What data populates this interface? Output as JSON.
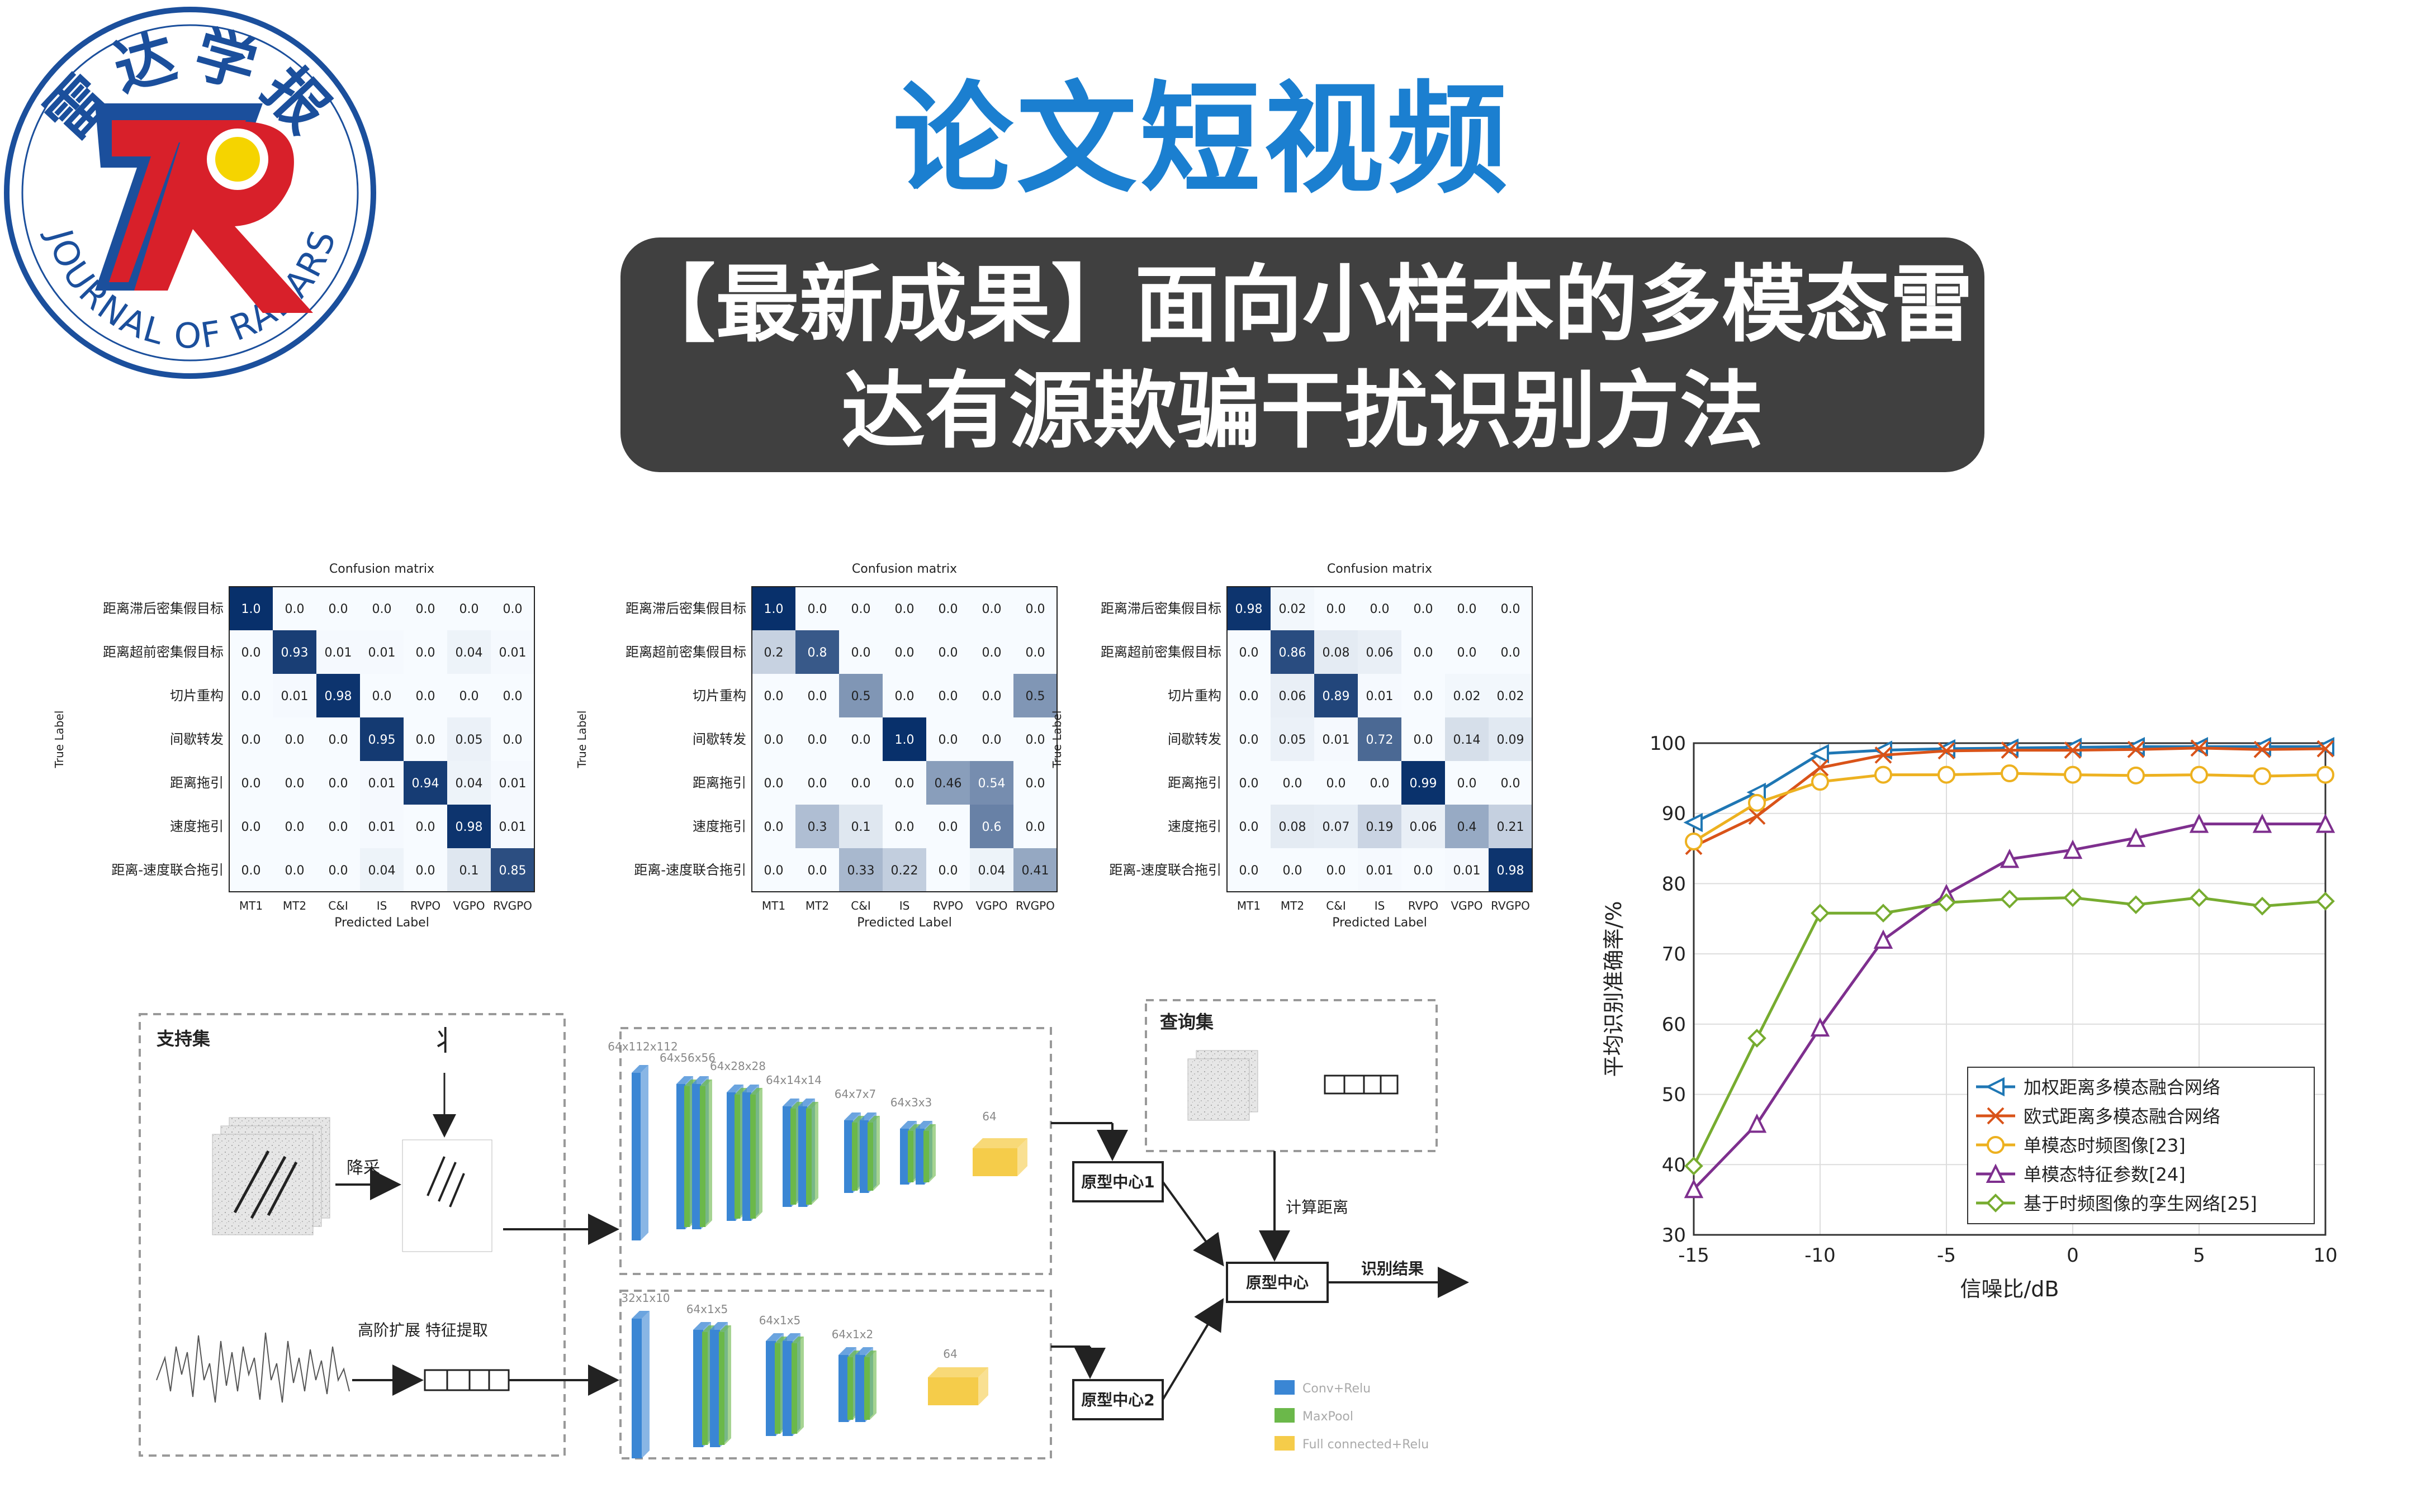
{
  "logo": {
    "journal_cn": "雷达学报",
    "journal_en": "JOURNAL OF RADARS",
    "colors": {
      "ring": "#1b4f9c",
      "red": "#d8202a",
      "yellow": "#f5d400"
    }
  },
  "header": {
    "title": "论文短视频",
    "subtitle_line1": "【最新成果】面向小样本的多模态雷",
    "subtitle_line2": "达有源欺骗干扰识别方法"
  },
  "confusion_matrices": [
    {
      "title": "Confusion matrix",
      "xlabel": "Predicted Label",
      "ylabel": "True Label",
      "row_labels": [
        "距离滞后密集假目标",
        "距离超前密集假目标",
        "切片重构",
        "间歇转发",
        "距离拖引",
        "速度拖引",
        "距离-速度联合拖引"
      ],
      "col_labels": [
        "MT1",
        "MT2",
        "C&I",
        "IS",
        "RVPO",
        "VGPO",
        "RVGPO"
      ],
      "cells": [
        [
          "1.0",
          "0.0",
          "0.0",
          "0.0",
          "0.0",
          "0.0",
          "0.0"
        ],
        [
          "0.0",
          "0.93",
          "0.01",
          "0.01",
          "0.0",
          "0.04",
          "0.01"
        ],
        [
          "0.0",
          "0.01",
          "0.98",
          "0.0",
          "0.0",
          "0.0",
          "0.0"
        ],
        [
          "0.0",
          "0.0",
          "0.0",
          "0.95",
          "0.0",
          "0.05",
          "0.0"
        ],
        [
          "0.0",
          "0.0",
          "0.0",
          "0.01",
          "0.94",
          "0.04",
          "0.01"
        ],
        [
          "0.0",
          "0.0",
          "0.0",
          "0.01",
          "0.0",
          "0.98",
          "0.01"
        ],
        [
          "0.0",
          "0.0",
          "0.0",
          "0.04",
          "0.0",
          "0.1",
          "0.85"
        ]
      ]
    },
    {
      "title": "Confusion matrix",
      "xlabel": "Predicted Label",
      "ylabel": "True Label",
      "row_labels": [
        "距离滞后密集假目标",
        "距离超前密集假目标",
        "切片重构",
        "间歇转发",
        "距离拖引",
        "速度拖引",
        "距离-速度联合拖引"
      ],
      "col_labels": [
        "MT1",
        "MT2",
        "C&I",
        "IS",
        "RVPO",
        "VGPO",
        "RVGPO"
      ],
      "cells": [
        [
          "1.0",
          "0.0",
          "0.0",
          "0.0",
          "0.0",
          "0.0",
          "0.0"
        ],
        [
          "0.2",
          "0.8",
          "0.0",
          "0.0",
          "0.0",
          "0.0",
          "0.0"
        ],
        [
          "0.0",
          "0.0",
          "0.5",
          "0.0",
          "0.0",
          "0.0",
          "0.5"
        ],
        [
          "0.0",
          "0.0",
          "0.0",
          "1.0",
          "0.0",
          "0.0",
          "0.0"
        ],
        [
          "0.0",
          "0.0",
          "0.0",
          "0.0",
          "0.46",
          "0.54",
          "0.0"
        ],
        [
          "0.0",
          "0.3",
          "0.1",
          "0.0",
          "0.0",
          "0.6",
          "0.0"
        ],
        [
          "0.0",
          "0.0",
          "0.33",
          "0.22",
          "0.0",
          "0.04",
          "0.41"
        ]
      ]
    },
    {
      "title": "Confusion matrix",
      "xlabel": "Predicted Label",
      "ylabel": "True Label",
      "row_labels": [
        "距离滞后密集假目标",
        "距离超前密集假目标",
        "切片重构",
        "间歇转发",
        "距离拖引",
        "速度拖引",
        "距离-速度联合拖引"
      ],
      "col_labels": [
        "MT1",
        "MT2",
        "C&I",
        "IS",
        "RVPO",
        "VGPO",
        "RVGPO"
      ],
      "cells": [
        [
          "0.98",
          "0.02",
          "0.0",
          "0.0",
          "0.0",
          "0.0",
          "0.0"
        ],
        [
          "0.0",
          "0.86",
          "0.08",
          "0.06",
          "0.0",
          "0.0",
          "0.0"
        ],
        [
          "0.0",
          "0.06",
          "0.89",
          "0.01",
          "0.0",
          "0.02",
          "0.02"
        ],
        [
          "0.0",
          "0.05",
          "0.01",
          "0.72",
          "0.0",
          "0.14",
          "0.09"
        ],
        [
          "0.0",
          "0.0",
          "0.0",
          "0.0",
          "0.99",
          "0.0",
          "0.0"
        ],
        [
          "0.0",
          "0.08",
          "0.07",
          "0.19",
          "0.06",
          "0.4",
          "0.21"
        ],
        [
          "0.0",
          "0.0",
          "0.0",
          "0.01",
          "0.0",
          "0.01",
          "0.98"
        ]
      ]
    }
  ],
  "architecture": {
    "support_set_label": "支持集",
    "query_set_label": "查询集",
    "downsample_label": "降采",
    "feature_extract_label": "高阶扩展\n特征提取",
    "prototype1_label": "原型中心1",
    "prototype2_label": "原型中心2",
    "prototype_label": "原型中心",
    "distance_label": "计算距离",
    "result_label": "识别结果",
    "top_branch_dims": [
      "64x112x112",
      "64x56x56",
      "64x28x28",
      "64x14x14",
      "64x7x7",
      "64x3x3",
      "64"
    ],
    "bottom_branch_dims": [
      "32x1x10",
      "64x1x5",
      "64x1x5",
      "64x1x2",
      "64"
    ],
    "legend": [
      "Conv+Relu",
      "MaxPool",
      "Full connected+Relu"
    ],
    "colors": {
      "conv": "#3a86d4",
      "pool": "#6bb84a",
      "fc": "#f5cc4a"
    }
  },
  "chart_data": {
    "type": "line",
    "xlabel": "信噪比/dB",
    "ylabel": "平均识别准确率/%",
    "xlim": [
      -15,
      10
    ],
    "ylim": [
      30,
      100
    ],
    "x": [
      -15,
      -12.5,
      -10,
      -7.5,
      -5,
      -2.5,
      0,
      2.5,
      5,
      7.5,
      10
    ],
    "xticks": [
      -15,
      -10,
      -5,
      0,
      5,
      10
    ],
    "yticks": [
      30,
      40,
      50,
      60,
      70,
      80,
      90,
      100
    ],
    "grid": true,
    "legend_position": "bottom-right",
    "series": [
      {
        "name": "加权距离多模态融合网络",
        "marker": "triangle-left",
        "color": "#1f77b4",
        "values": [
          88.7,
          93.0,
          98.5,
          99.0,
          99.2,
          99.3,
          99.4,
          99.5,
          99.5,
          99.5,
          99.5
        ]
      },
      {
        "name": "欧式距离多模态融合网络",
        "marker": "x",
        "color": "#d95319",
        "values": [
          85.3,
          89.6,
          96.5,
          98.3,
          98.9,
          99.0,
          99.0,
          99.1,
          99.3,
          99.1,
          99.2
        ]
      },
      {
        "name": "单模态时频图像[23]",
        "marker": "circle",
        "color": "#edb120",
        "values": [
          86.0,
          91.5,
          94.5,
          95.5,
          95.5,
          95.7,
          95.5,
          95.4,
          95.5,
          95.3,
          95.5
        ]
      },
      {
        "name": "单模态特征参数[24]",
        "marker": "triangle-up",
        "color": "#7e2f8e",
        "values": [
          36.5,
          45.8,
          59.5,
          72.0,
          78.5,
          83.5,
          84.8,
          86.5,
          88.5,
          88.5,
          88.5
        ]
      },
      {
        "name": "基于时频图像的孪生网络[25]",
        "marker": "diamond",
        "color": "#77ac30",
        "values": [
          39.8,
          58.0,
          75.8,
          75.8,
          77.3,
          77.8,
          78.0,
          77.0,
          78.0,
          76.8,
          77.5
        ]
      }
    ]
  }
}
